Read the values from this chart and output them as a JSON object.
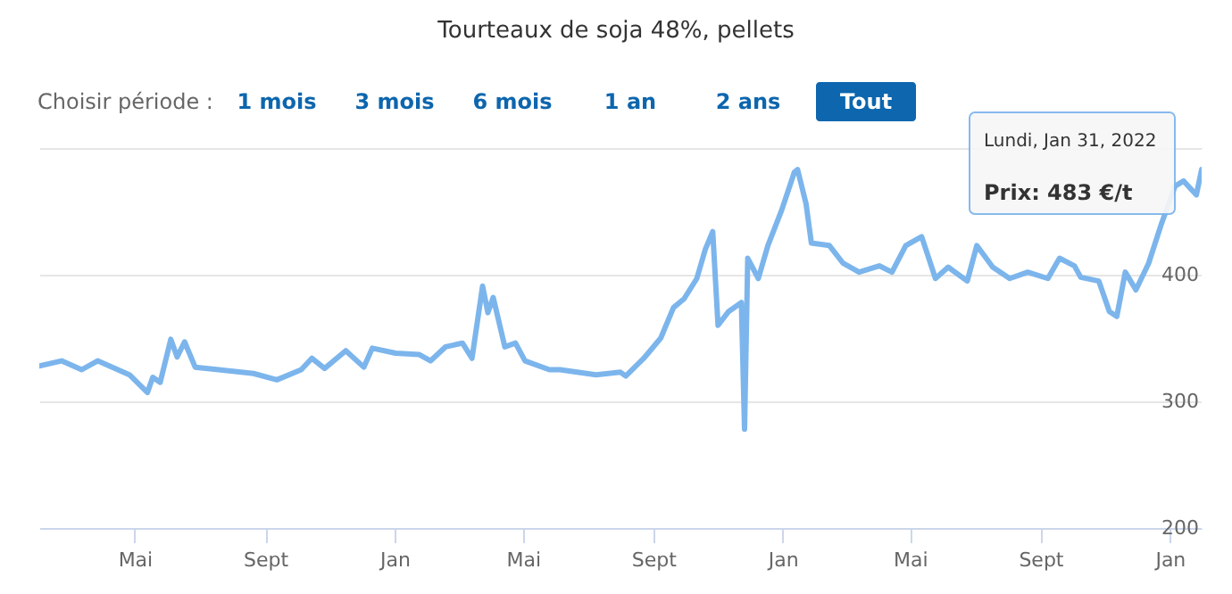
{
  "chart_data": {
    "type": "line",
    "title": "Tourteaux de soja 48%, pellets",
    "x": [
      "2019-01-31",
      "2019-02-21",
      "2019-03-12",
      "2019-03-27",
      "2019-04-26",
      "2019-05-13",
      "2019-05-18",
      "2019-05-25",
      "2019-06-04",
      "2019-06-10",
      "2019-06-17",
      "2019-06-27",
      "2019-07-19",
      "2019-08-21",
      "2019-09-12",
      "2019-10-05",
      "2019-10-15",
      "2019-10-27",
      "2019-11-16",
      "2019-12-03",
      "2019-12-11",
      "2020-01-02",
      "2020-01-24",
      "2020-02-04",
      "2020-02-18",
      "2020-03-05",
      "2020-03-14",
      "2020-03-24",
      "2020-03-29",
      "2020-04-03",
      "2020-04-14",
      "2020-04-24",
      "2020-05-03",
      "2020-05-26",
      "2020-06-05",
      "2020-07-09",
      "2020-08-01",
      "2020-08-06",
      "2020-08-23",
      "2020-09-08",
      "2020-09-20",
      "2020-09-30",
      "2020-10-12",
      "2020-10-20",
      "2020-10-27",
      "2020-11-01",
      "2020-11-11",
      "2020-11-23",
      "2020-11-26",
      "2020-11-29",
      "2020-12-09",
      "2020-12-18",
      "2020-12-31",
      "2021-01-12",
      "2021-01-15",
      "2021-01-23",
      "2021-01-28",
      "2021-02-14",
      "2021-02-27",
      "2021-03-14",
      "2021-04-02",
      "2021-04-14",
      "2021-04-27",
      "2021-05-12",
      "2021-05-25",
      "2021-06-06",
      "2021-06-24",
      "2021-07-03",
      "2021-07-18",
      "2021-08-03",
      "2021-08-20",
      "2021-09-08",
      "2021-09-19",
      "2021-10-03",
      "2021-10-09",
      "2021-10-26",
      "2021-11-05",
      "2021-11-12",
      "2021-11-20",
      "2021-11-30",
      "2021-12-12",
      "2021-12-24",
      "2022-01-06",
      "2022-01-14",
      "2022-01-26",
      "2022-01-31"
    ],
    "series": [
      {
        "color": "#7cb5ec",
        "values": [
          328,
          332,
          325,
          332,
          321,
          307,
          319,
          315,
          349,
          335,
          347,
          327,
          325,
          322,
          317,
          325,
          334,
          326,
          340,
          327,
          342,
          338,
          337,
          332,
          343,
          346,
          334,
          391,
          370,
          382,
          343,
          346,
          332,
          325,
          325,
          321,
          323,
          320,
          334,
          350,
          374,
          381,
          397,
          420,
          434,
          360,
          371,
          378,
          278,
          413,
          397,
          423,
          451,
          481,
          483,
          456,
          425,
          423,
          409,
          402,
          407,
          402,
          423,
          430,
          397,
          406,
          395,
          423,
          406,
          397,
          402,
          397,
          413,
          407,
          398,
          395,
          371,
          367,
          402,
          388,
          409,
          440,
          470,
          474,
          463,
          483
        ]
      }
    ],
    "xlim": [
      "2019-01-31",
      "2022-01-31"
    ],
    "xticks": [
      {
        "value": "2019-05-01",
        "label": "Mai"
      },
      {
        "value": "2019-09-01",
        "label": "Sept"
      },
      {
        "value": "2020-01-01",
        "label": "Jan"
      },
      {
        "value": "2020-05-01",
        "label": "Mai"
      },
      {
        "value": "2020-09-01",
        "label": "Sept"
      },
      {
        "value": "2021-01-01",
        "label": "Jan"
      },
      {
        "value": "2021-05-01",
        "label": "Mai"
      },
      {
        "value": "2021-09-01",
        "label": "Sept"
      },
      {
        "value": "2022-01-01",
        "label": "Jan"
      }
    ],
    "ylim": [
      200,
      500
    ],
    "yticks": [
      200,
      300,
      400,
      {
        "value": 500,
        "label": null
      }
    ],
    "grid": "y",
    "legend": false,
    "marker": "none",
    "line_style": "solid",
    "annotations": [
      "Choisir période :",
      "1 mois",
      "3 mois",
      "6 mois",
      "1 an",
      "2 ans",
      "Tout",
      "Lundi, Jan 31, 2022",
      "Prix: 483 €/t"
    ]
  }
}
